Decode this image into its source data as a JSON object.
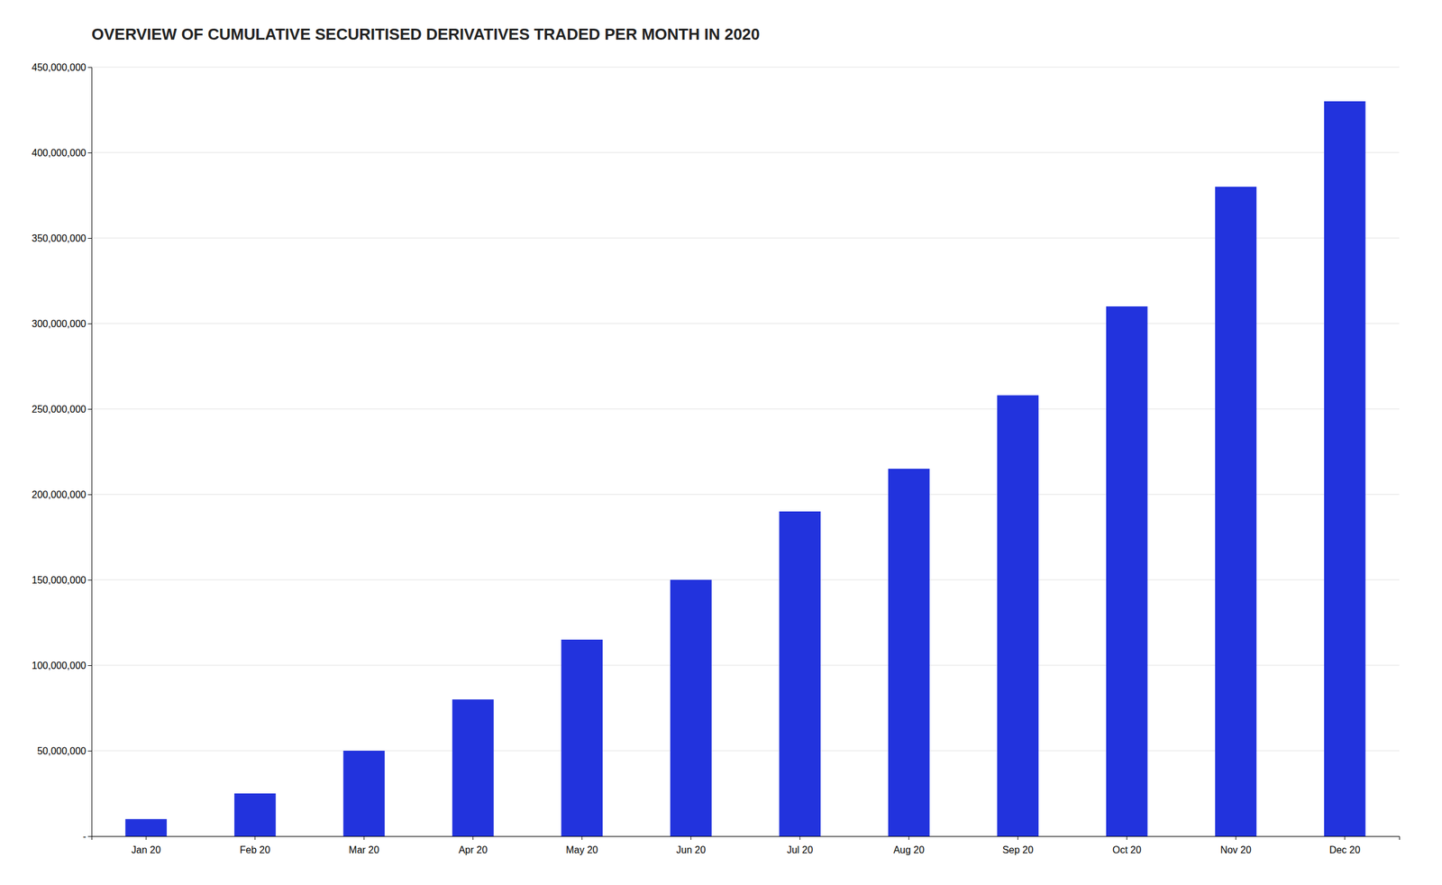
{
  "chart_data": {
    "type": "bar",
    "title": "OVERVIEW OF CUMULATIVE SECURITISED DERIVATIVES TRADED PER MONTH IN 2020",
    "categories": [
      "Jan 20",
      "Feb 20",
      "Mar 20",
      "Apr 20",
      "May 20",
      "Jun 20",
      "Jul 20",
      "Aug 20",
      "Sep 20",
      "Oct 20",
      "Nov 20",
      "Dec 20"
    ],
    "values": [
      10000000,
      25000000,
      50000000,
      80000000,
      115000000,
      150000000,
      190000000,
      215000000,
      258000000,
      310000000,
      380000000,
      430000000
    ],
    "color": "#2233dd",
    "ylim": [
      0,
      450000000
    ],
    "yticks": [
      {
        "value": 0,
        "label": "  -"
      },
      {
        "value": 50000000,
        "label": "50,000,000"
      },
      {
        "value": 100000000,
        "label": "100,000,000"
      },
      {
        "value": 150000000,
        "label": "150,000,000"
      },
      {
        "value": 200000000,
        "label": "200,000,000"
      },
      {
        "value": 250000000,
        "label": "250,000,000"
      },
      {
        "value": 300000000,
        "label": "300,000,000"
      },
      {
        "value": 350000000,
        "label": "350,000,000"
      },
      {
        "value": 400000000,
        "label": "400,000,000"
      },
      {
        "value": 450000000,
        "label": "450,000,000"
      }
    ],
    "grid": true
  }
}
